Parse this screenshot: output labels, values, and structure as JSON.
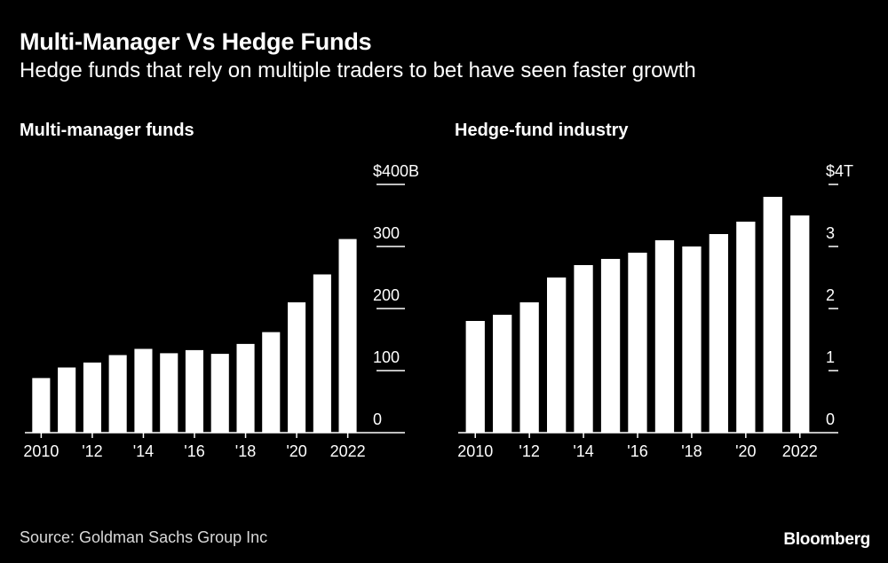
{
  "title": "Multi-Manager Vs Hedge Funds",
  "subtitle": "Hedge funds that rely on multiple traders to bet have seen faster growth",
  "source": "Source: Goldman Sachs Group Inc",
  "brand": "Bloomberg",
  "colors": {
    "background": "#000000",
    "bars": "#ffffff",
    "text": "#ffffff"
  },
  "chart_data": [
    {
      "type": "bar",
      "title": "Multi-manager funds",
      "categories": [
        "2010",
        "2011",
        "2012",
        "2013",
        "2014",
        "2015",
        "2016",
        "2017",
        "2018",
        "2019",
        "2020",
        "2021",
        "2022"
      ],
      "values": [
        88,
        105,
        113,
        125,
        135,
        128,
        133,
        127,
        143,
        162,
        210,
        255,
        312
      ],
      "ylim": [
        0,
        400
      ],
      "yticks": [
        0,
        100,
        200,
        300,
        400
      ],
      "ytick_labels": [
        "0",
        "100",
        "200",
        "300",
        "$400B"
      ],
      "xtick_labels": [
        "2010",
        "'12",
        "'14",
        "'16",
        "'18",
        "'20",
        "2022"
      ],
      "xtick_categories": [
        "2010",
        "2012",
        "2014",
        "2016",
        "2018",
        "2020",
        "2022"
      ],
      "grid": false
    },
    {
      "type": "bar",
      "title": "Hedge-fund industry",
      "categories": [
        "2010",
        "2011",
        "2012",
        "2013",
        "2014",
        "2015",
        "2016",
        "2017",
        "2018",
        "2019",
        "2020",
        "2021",
        "2022"
      ],
      "values": [
        1.8,
        1.9,
        2.1,
        2.5,
        2.7,
        2.8,
        2.9,
        3.1,
        3.0,
        3.2,
        3.4,
        3.8,
        3.5
      ],
      "ylim": [
        0,
        4
      ],
      "yticks": [
        0,
        1,
        2,
        3,
        4
      ],
      "ytick_labels": [
        "0",
        "1",
        "2",
        "3",
        "$4T"
      ],
      "xtick_labels": [
        "2010",
        "'12",
        "'14",
        "'16",
        "'18",
        "'20",
        "2022"
      ],
      "xtick_categories": [
        "2010",
        "2012",
        "2014",
        "2016",
        "2018",
        "2020",
        "2022"
      ],
      "grid": false
    }
  ]
}
